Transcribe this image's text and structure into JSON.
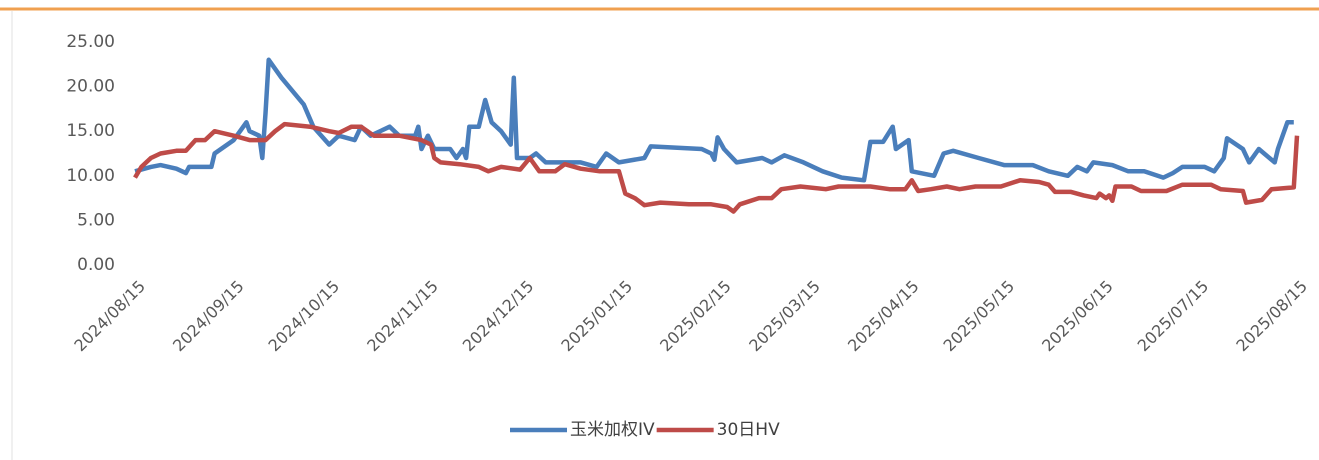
{
  "chart_data": {
    "type": "line",
    "xlim": [
      "2024/08/15",
      "2025/08/15"
    ],
    "xticks": [
      "2024/08/15",
      "2024/09/15",
      "2024/10/15",
      "2024/11/15",
      "2024/12/15",
      "2025/01/15",
      "2025/02/15",
      "2025/03/15",
      "2025/04/15",
      "2025/05/15",
      "2025/06/15",
      "2025/07/15",
      "2025/08/15"
    ],
    "ylim": [
      0,
      25
    ],
    "yticks": [
      {
        "value": 0,
        "label": "0.00"
      },
      {
        "value": 5,
        "label": "5.00"
      },
      {
        "value": 10,
        "label": "10.00"
      },
      {
        "value": 15,
        "label": "15.00"
      },
      {
        "value": 20,
        "label": "20.00"
      },
      {
        "value": 25,
        "label": "25.00"
      }
    ],
    "legend": "bottom",
    "series": [
      {
        "name": "玉米加权IV",
        "color": "#4a7ebb",
        "x": [
          "2024/08/15",
          "2024/08/20",
          "2024/08/23",
          "2024/08/28",
          "2024/08/31",
          "2024/09/01",
          "2024/09/08",
          "2024/09/09",
          "2024/09/15",
          "2024/09/19",
          "2024/09/20",
          "2024/09/23",
          "2024/09/24",
          "2024/09/25",
          "2024/09/26",
          "2024/09/30",
          "2024/10/07",
          "2024/10/10",
          "2024/10/15",
          "2024/10/18",
          "2024/10/23",
          "2024/10/25",
          "2024/10/28",
          "2024/11/03",
          "2024/11/06",
          "2024/11/11",
          "2024/11/12",
          "2024/11/13",
          "2024/11/15",
          "2024/11/17",
          "2024/11/22",
          "2024/11/24",
          "2024/11/26",
          "2024/11/27",
          "2024/11/28",
          "2024/12/01",
          "2024/12/03",
          "2024/12/05",
          "2024/12/08",
          "2024/12/10",
          "2024/12/11",
          "2024/12/12",
          "2024/12/13",
          "2024/12/17",
          "2024/12/19",
          "2024/12/22",
          "2025/01/02",
          "2025/01/07",
          "2025/01/10",
          "2025/01/14",
          "2025/01/22",
          "2025/01/24",
          "2025/02/09",
          "2025/02/12",
          "2025/02/13",
          "2025/02/14",
          "2025/02/16",
          "2025/02/20",
          "2025/02/28",
          "2025/03/03",
          "2025/03/07",
          "2025/03/13",
          "2025/03/19",
          "2025/03/25",
          "2025/04/01",
          "2025/04/03",
          "2025/04/07",
          "2025/04/10",
          "2025/04/11",
          "2025/04/15",
          "2025/04/16",
          "2025/04/23",
          "2025/04/26",
          "2025/04/29",
          "2025/05/07",
          "2025/05/15",
          "2025/05/24",
          "2025/05/29",
          "2025/06/04",
          "2025/06/07",
          "2025/06/10",
          "2025/06/12",
          "2025/06/18",
          "2025/06/23",
          "2025/06/28",
          "2025/07/04",
          "2025/07/07",
          "2025/07/10",
          "2025/07/17",
          "2025/07/20",
          "2025/07/23",
          "2025/07/24",
          "2025/07/29",
          "2025/07/31",
          "2025/08/03",
          "2025/08/08",
          "2025/08/09",
          "2025/08/12",
          "2025/08/14"
        ],
        "values": [
          10.5,
          11.0,
          11.2,
          10.8,
          10.3,
          11.0,
          11.0,
          12.5,
          14.0,
          16.0,
          15.0,
          14.5,
          12.0,
          17.0,
          23.0,
          21.0,
          18.0,
          15.5,
          13.5,
          14.5,
          14.0,
          15.5,
          14.5,
          15.5,
          14.5,
          14.5,
          15.5,
          13.0,
          14.5,
          13.0,
          13.0,
          12.0,
          13.0,
          12.0,
          15.5,
          15.5,
          18.5,
          16.0,
          15.0,
          14.0,
          13.5,
          21.0,
          12.0,
          12.0,
          12.5,
          11.5,
          11.5,
          11.0,
          12.5,
          11.5,
          12.0,
          13.3,
          13.0,
          12.5,
          11.8,
          14.3,
          13.0,
          11.5,
          12.0,
          11.5,
          12.3,
          11.5,
          10.5,
          9.8,
          9.5,
          13.8,
          13.8,
          15.5,
          13.0,
          14.0,
          10.5,
          10.0,
          12.5,
          12.8,
          12.0,
          11.2,
          11.2,
          10.5,
          10.0,
          11.0,
          10.5,
          11.5,
          11.2,
          10.5,
          10.5,
          9.8,
          10.3,
          11.0,
          11.0,
          10.5,
          12.0,
          14.2,
          13.0,
          11.5,
          13.0,
          11.5,
          13.0,
          16.0,
          16.0
        ]
      },
      {
        "name": "30日HV",
        "color": "#be4b48",
        "x": [
          "2024/08/15",
          "2024/08/17",
          "2024/08/20",
          "2024/08/23",
          "2024/08/28",
          "2024/08/31",
          "2024/09/03",
          "2024/09/06",
          "2024/09/09",
          "2024/09/15",
          "2024/09/20",
          "2024/09/25",
          "2024/09/28",
          "2024/10/01",
          "2024/10/09",
          "2024/10/15",
          "2024/10/18",
          "2024/10/22",
          "2024/10/25",
          "2024/10/29",
          "2024/11/06",
          "2024/11/13",
          "2024/11/16",
          "2024/11/17",
          "2024/11/19",
          "2024/11/25",
          "2024/12/01",
          "2024/12/04",
          "2024/12/08",
          "2024/12/14",
          "2024/12/17",
          "2024/12/20",
          "2024/12/25",
          "2024/12/28",
          "2025/01/02",
          "2025/01/08",
          "2025/01/14",
          "2025/01/16",
          "2025/01/19",
          "2025/01/22",
          "2025/01/27",
          "2025/02/05",
          "2025/02/12",
          "2025/02/17",
          "2025/02/19",
          "2025/02/21",
          "2025/02/27",
          "2025/03/03",
          "2025/03/06",
          "2025/03/12",
          "2025/03/20",
          "2025/03/24",
          "2025/04/03",
          "2025/04/09",
          "2025/04/14",
          "2025/04/16",
          "2025/04/18",
          "2025/04/22",
          "2025/04/27",
          "2025/05/01",
          "2025/05/06",
          "2025/05/14",
          "2025/05/20",
          "2025/05/26",
          "2025/05/29",
          "2025/05/31",
          "2025/06/05",
          "2025/06/09",
          "2025/06/13",
          "2025/06/14",
          "2025/06/16",
          "2025/06/17",
          "2025/06/18",
          "2025/06/19",
          "2025/06/24",
          "2025/06/27",
          "2025/07/05",
          "2025/07/10",
          "2025/07/19",
          "2025/07/22",
          "2025/07/29",
          "2025/07/30",
          "2025/08/04",
          "2025/08/07",
          "2025/08/14",
          "2025/08/15"
        ],
        "values": [
          9.8,
          11.0,
          12.0,
          12.5,
          12.8,
          12.8,
          14.0,
          14.0,
          15.0,
          14.5,
          14.0,
          14.0,
          15.0,
          15.8,
          15.5,
          15.0,
          14.8,
          15.5,
          15.5,
          14.5,
          14.5,
          14.0,
          13.5,
          12.0,
          11.5,
          11.3,
          11.0,
          10.5,
          11.0,
          10.7,
          12.0,
          10.5,
          10.5,
          11.3,
          10.8,
          10.5,
          10.5,
          8.0,
          7.5,
          6.7,
          7.0,
          6.8,
          6.8,
          6.5,
          6.0,
          6.8,
          7.5,
          7.5,
          8.5,
          8.8,
          8.5,
          8.8,
          8.8,
          8.5,
          8.5,
          9.5,
          8.3,
          8.5,
          8.8,
          8.5,
          8.8,
          8.8,
          9.5,
          9.3,
          9.0,
          8.2,
          8.2,
          7.8,
          7.5,
          8.0,
          7.5,
          7.8,
          7.2,
          8.8,
          8.8,
          8.3,
          8.3,
          9.0,
          9.0,
          8.5,
          8.3,
          7.0,
          7.3,
          8.5,
          8.7,
          14.5
        ]
      }
    ]
  }
}
